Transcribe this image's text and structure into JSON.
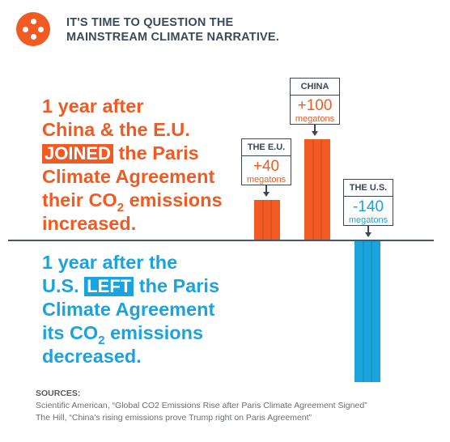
{
  "header": {
    "line1": "IT'S TIME TO QUESTION THE",
    "line2": "MAINSTREAM CLIMATE NARRATIVE."
  },
  "orange_text": {
    "l1": "1 year after",
    "l2": "China & the E.U.",
    "l3_pill": "JOINED",
    "l3_rest": " the Paris",
    "l4": "Climate Agreement",
    "l5_a": "their CO",
    "l5_sub": "2",
    "l5_b": " emissions",
    "l6": "increased."
  },
  "blue_text": {
    "l1": "1 year after the",
    "l2_a": "U.S. ",
    "l2_pill": "LEFT",
    "l2_rest": " the Paris",
    "l3": "Climate Agreement",
    "l4_a": "its CO",
    "l4_sub": "2",
    "l4_b": " emissions",
    "l5": "decreased."
  },
  "chart_data": {
    "type": "bar",
    "categories": [
      "THE E.U.",
      "CHINA",
      "THE U.S."
    ],
    "values": [
      40,
      100,
      -140
    ],
    "value_labels": [
      "+40",
      "+100",
      "-140"
    ],
    "unit": "megatons",
    "colors": [
      "#f15a22",
      "#f15a22",
      "#1aa3dc"
    ]
  },
  "sources": {
    "heading": "SOURCES:",
    "items": [
      "Scientific American, “Global CO2 Emissions Rise after Paris Climate Agreement Signed”",
      "The Hill, “China's rising emissions prove Trump right on Paris Agreement”"
    ]
  },
  "colors": {
    "orange": "#f15a22",
    "blue": "#1aa3dc",
    "dark": "#3a4656"
  }
}
